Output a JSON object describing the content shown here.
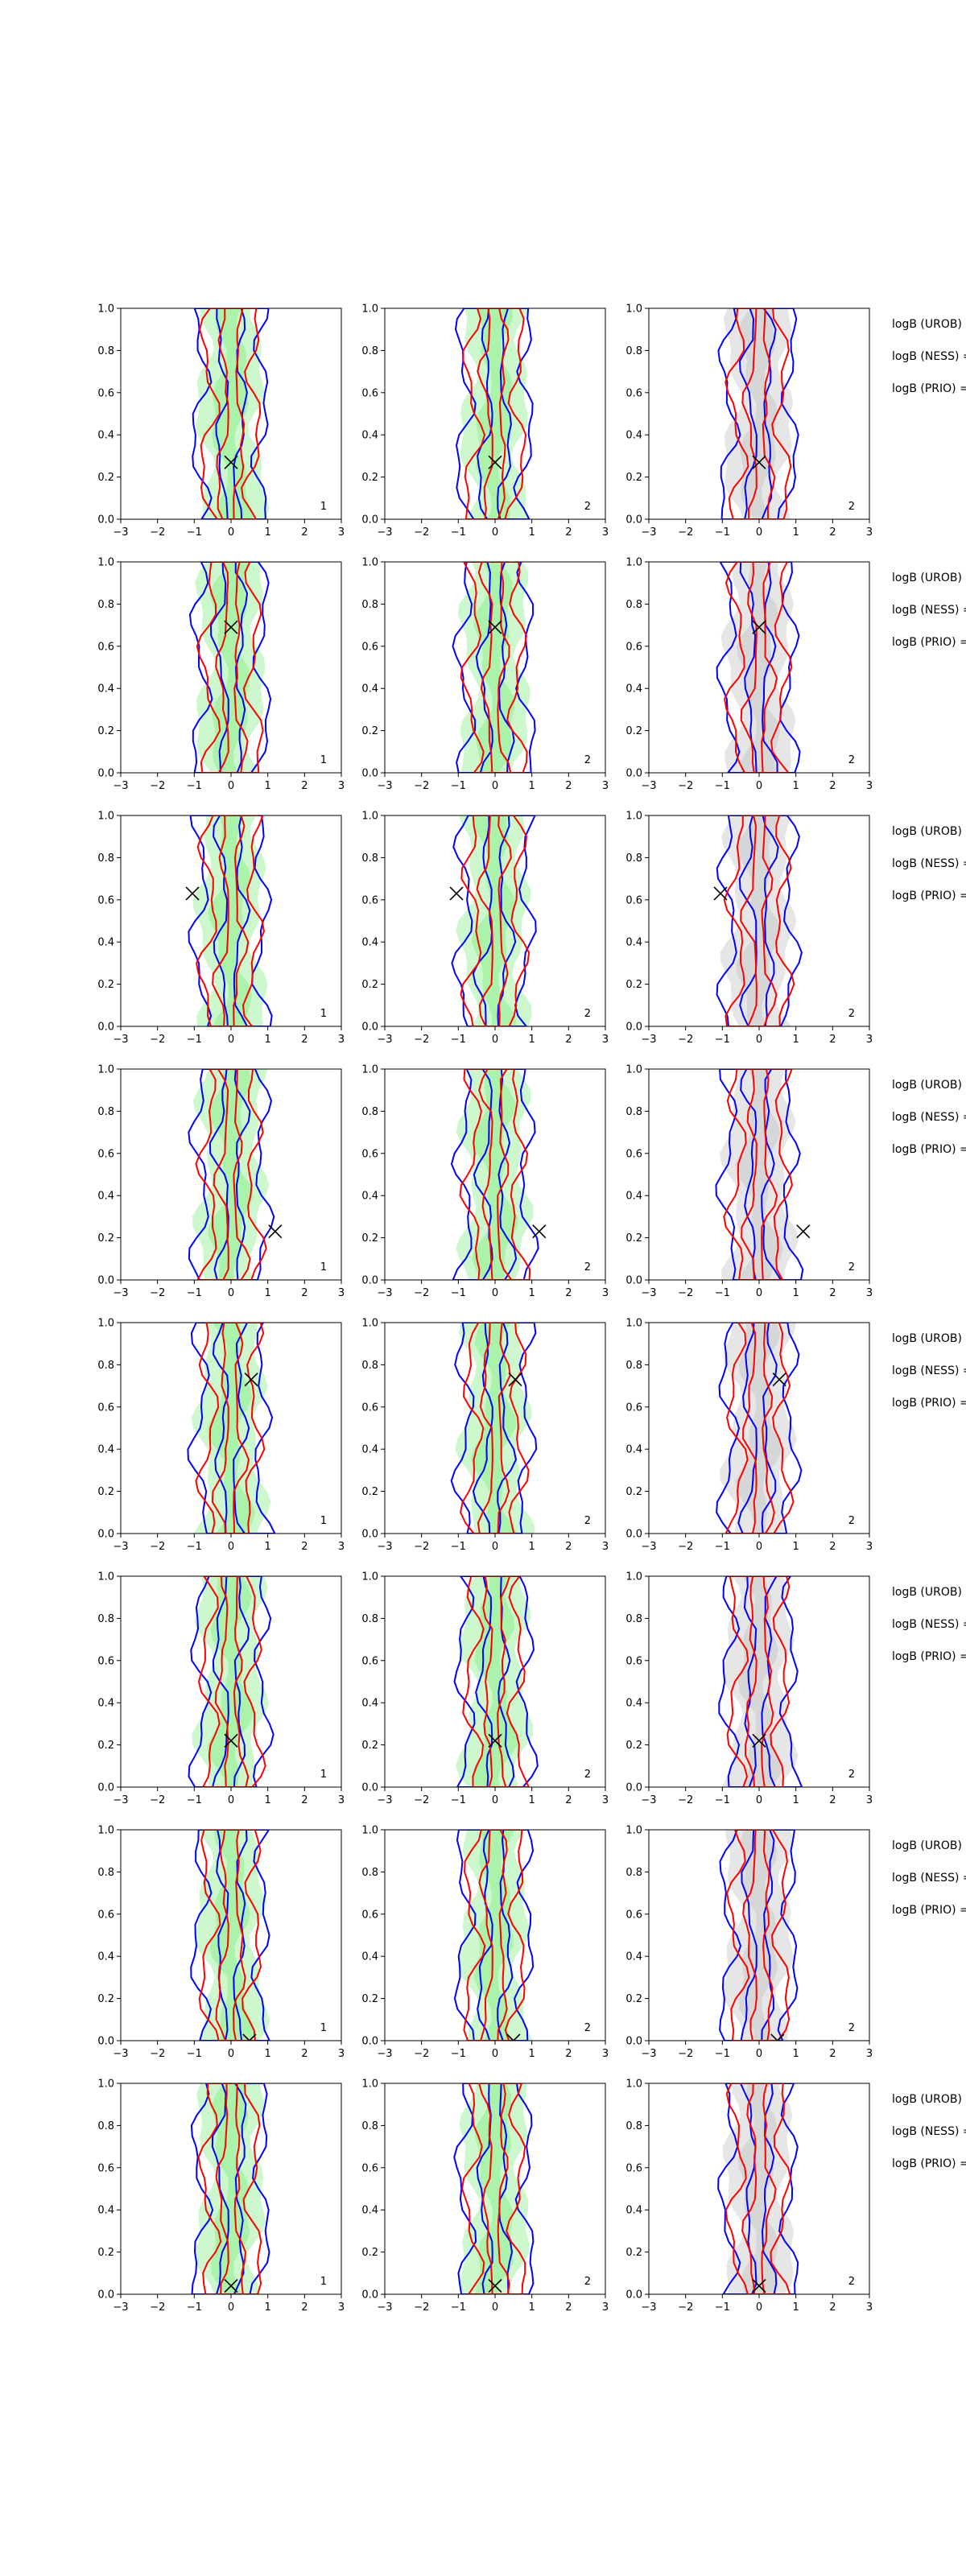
{
  "chart_data": {
    "type": "contour",
    "grid": {
      "rows": 8,
      "cols": 3
    },
    "xlim": [
      -3,
      3
    ],
    "ylim": [
      0,
      1
    ],
    "xticks": [
      -3,
      -2,
      -1,
      0,
      1,
      2,
      3
    ],
    "yticks": [
      0.0,
      0.2,
      0.4,
      0.6,
      0.8,
      1.0
    ],
    "xtick_labels": [
      "−3",
      "−2",
      "−1",
      "0",
      "1",
      "2",
      "3"
    ],
    "ytick_labels": [
      "0.0",
      "0.2",
      "0.4",
      "0.6",
      "0.8",
      "1.0"
    ],
    "panel_ids": [
      "1",
      "2",
      "2"
    ],
    "colors": {
      "blue": "#0000ff",
      "red": "#ff0000",
      "green_fill": "#90ee90",
      "gray_fill": "#c8c8c8",
      "marker": "#000000"
    },
    "rows": [
      {
        "marker": [
          0.0,
          0.27
        ],
        "side_labels": [
          "logB (UROB)",
          "logB (NESS) =",
          "logB (PRIO) ="
        ]
      },
      {
        "marker": [
          0.0,
          0.69
        ],
        "side_labels": [
          "logB (UROB) =",
          "logB (NESS) =",
          "logB (PRIO) ="
        ]
      },
      {
        "marker": [
          -1.05,
          0.63
        ],
        "side_labels": [
          "logB (UROB) =",
          "logB (NESS) =",
          "logB (PRIO) ="
        ]
      },
      {
        "marker": [
          1.2,
          0.23
        ],
        "side_labels": [
          "logB (UROB) =",
          "logB (NESS) =",
          "logB (PRIO) ="
        ]
      },
      {
        "marker": [
          0.55,
          0.73
        ],
        "side_labels": [
          "logB (UROB) =",
          "logB (NESS) =",
          "logB (PRIO) ="
        ]
      },
      {
        "marker": [
          0.0,
          0.22
        ],
        "side_labels": [
          "logB (UROB) =",
          "logB (NESS) =",
          "logB (PRIO) ="
        ]
      },
      {
        "marker": [
          0.5,
          0.0
        ],
        "side_labels": [
          "logB (UROB) =",
          "logB (NESS) =",
          "logB (PRIO) ="
        ]
      },
      {
        "marker": [
          0.0,
          0.04
        ],
        "side_labels": [
          "logB (UROB) =",
          "logB (NESS) =",
          "logB (PRIO) ="
        ]
      }
    ]
  }
}
